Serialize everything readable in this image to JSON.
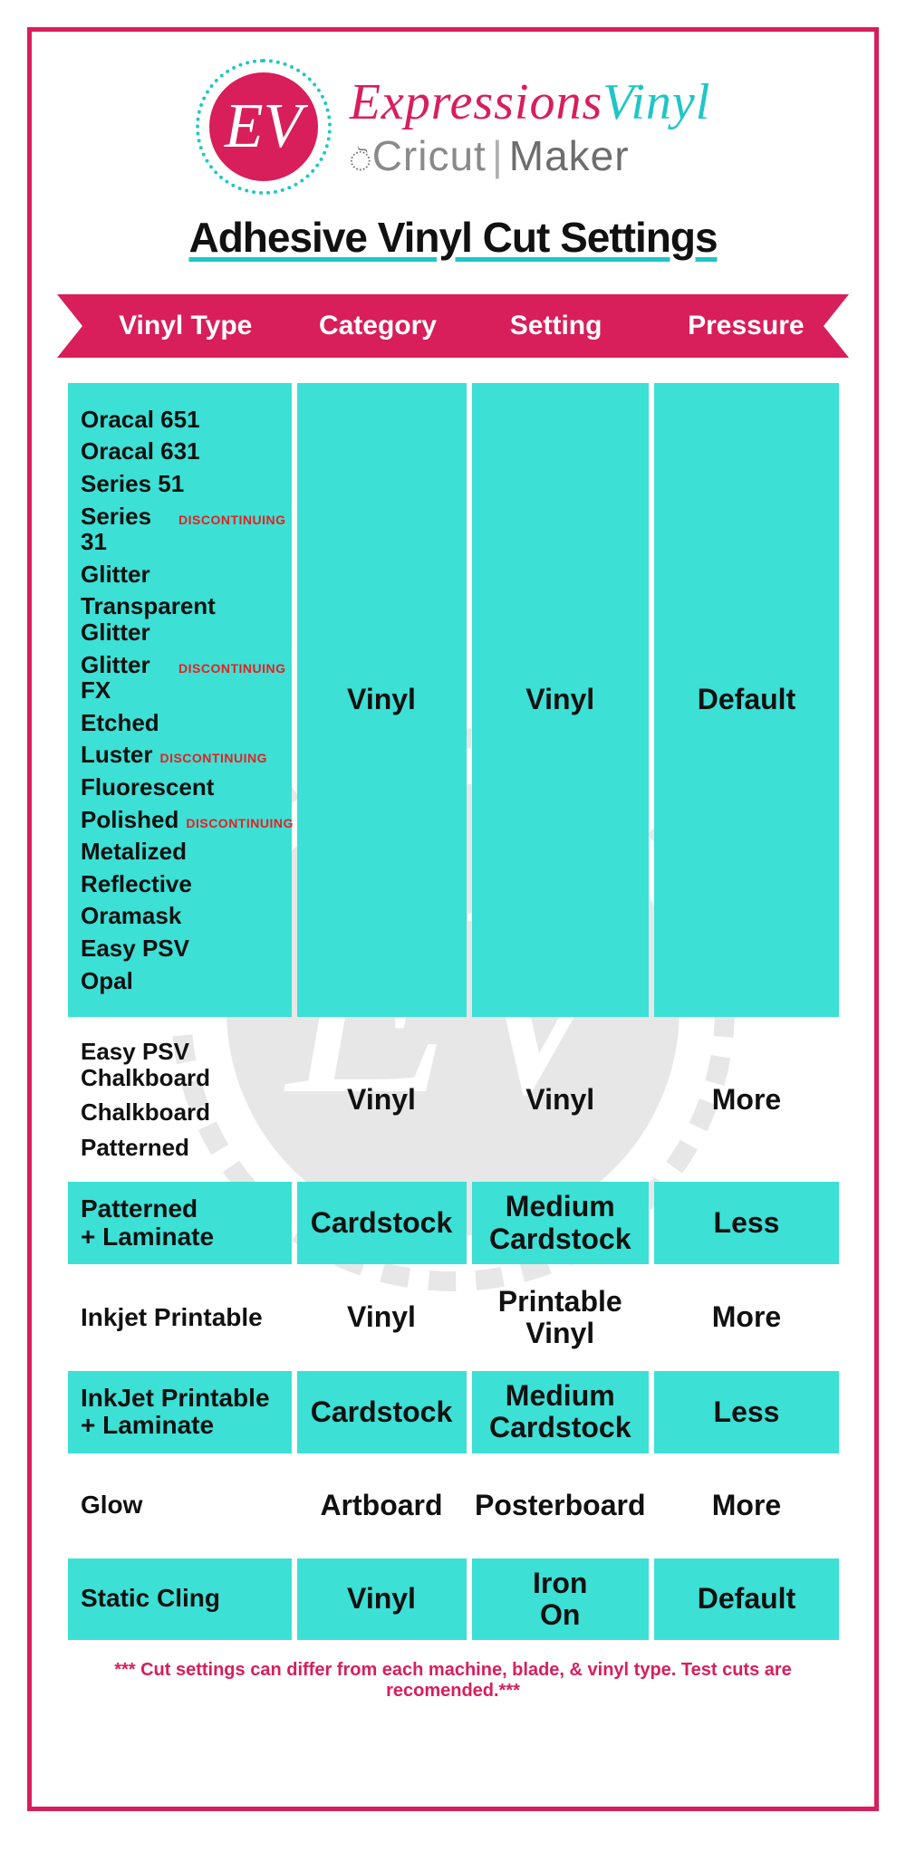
{
  "colors": {
    "accent_pink": "#d81e5b",
    "accent_teal": "#3ce0d5",
    "teal_line": "#1fc6c6",
    "text": "#111111",
    "disc_red": "#e52020",
    "gray": "#6d6d6d",
    "bg": "#ffffff"
  },
  "logo": {
    "badge_text": "EV",
    "brand_word1": "Expressions",
    "brand_word2": "Vinyl",
    "sub_brand1": "Cricut",
    "sub_pipe": "|",
    "sub_brand2": "Maker"
  },
  "title": "Adhesive Vinyl Cut Settings",
  "headers": [
    "Vinyl Type",
    "Category",
    "Setting",
    "Pressure"
  ],
  "discontinuing_label": "DISCONTINUING",
  "rows": [
    {
      "style": "teal",
      "types": [
        {
          "name": "Oracal 651",
          "disc": false
        },
        {
          "name": "Oracal 631",
          "disc": false
        },
        {
          "name": "Series 51",
          "disc": false
        },
        {
          "name": "Series 31",
          "disc": true
        },
        {
          "name": "Glitter",
          "disc": false
        },
        {
          "name": "Transparent Glitter",
          "disc": false
        },
        {
          "name": "Glitter FX",
          "disc": true
        },
        {
          "name": "Etched",
          "disc": false
        },
        {
          "name": "Luster",
          "disc": true
        },
        {
          "name": "Fluorescent",
          "disc": false
        },
        {
          "name": "Polished",
          "disc": true
        },
        {
          "name": "Metalized",
          "disc": false
        },
        {
          "name": "Reflective",
          "disc": false
        },
        {
          "name": "Oramask",
          "disc": false
        },
        {
          "name": "Easy PSV",
          "disc": false
        },
        {
          "name": "Opal",
          "disc": false
        }
      ],
      "category": "Vinyl",
      "setting": "Vinyl",
      "pressure": "Default"
    },
    {
      "style": "plain",
      "types": [
        {
          "name": "Easy PSV Chalkboard",
          "disc": false
        },
        {
          "name": "Chalkboard",
          "disc": false
        },
        {
          "name": "Patterned",
          "disc": false
        }
      ],
      "category": "Vinyl",
      "setting": "Vinyl",
      "pressure": "More"
    },
    {
      "style": "teal",
      "types_text": "Patterned\n+ Laminate",
      "category": "Cardstock",
      "setting": "Medium Cardstock",
      "pressure": "Less"
    },
    {
      "style": "plain",
      "types_text": "Inkjet Printable",
      "category": "Vinyl",
      "setting": "Printable Vinyl",
      "pressure": "More"
    },
    {
      "style": "teal",
      "types_text": "InkJet Printable\n+ Laminate",
      "category": "Cardstock",
      "setting": "Medium Cardstock",
      "pressure": "Less"
    },
    {
      "style": "plain",
      "types_text": "Glow",
      "category": "Artboard",
      "setting": "Posterboard",
      "pressure": "More"
    },
    {
      "style": "teal",
      "types_text": "Static Cling",
      "category": "Vinyl",
      "setting": "Iron On",
      "pressure": "Default"
    }
  ],
  "footnote": "*** Cut settings can differ from each machine, blade, & vinyl type. Test cuts are recomended.***"
}
